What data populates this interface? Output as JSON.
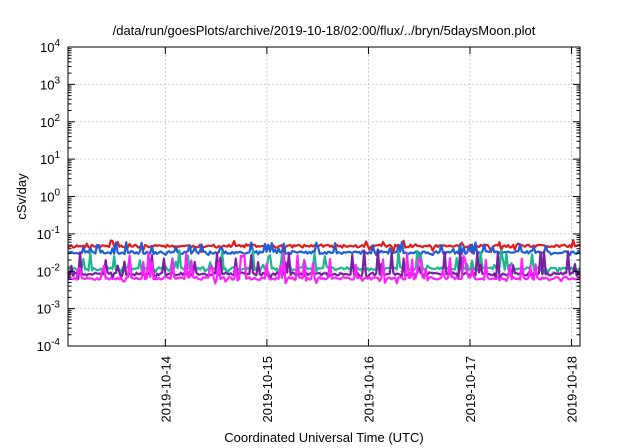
{
  "chart_data": {
    "type": "line",
    "title": "/data/run/goesPlots/archive/2019-10-18/02:00/flux/../bryn/5daysMoon.plot",
    "xlabel": "Coordinated Universal Time (UTC)",
    "ylabel": "cSv/day",
    "y_scale": "log",
    "ylim": [
      0.0001,
      10000
    ],
    "y_ticks": [
      {
        "value": 0.0001,
        "base": "10",
        "exp": "-4"
      },
      {
        "value": 0.001,
        "base": "10",
        "exp": "-3"
      },
      {
        "value": 0.01,
        "base": "10",
        "exp": "-2"
      },
      {
        "value": 0.1,
        "base": "10",
        "exp": "-1"
      },
      {
        "value": 1,
        "base": "10",
        "exp": "0"
      },
      {
        "value": 10,
        "base": "10",
        "exp": "1"
      },
      {
        "value": 100,
        "base": "10",
        "exp": "2"
      },
      {
        "value": 1000,
        "base": "10",
        "exp": "3"
      },
      {
        "value": 10000,
        "base": "10",
        "exp": "4"
      }
    ],
    "x_range_days": [
      "2019-10-13 01:00",
      "2019-10-18 02:00"
    ],
    "x_ticks": [
      "2019-10-14",
      "2019-10-15",
      "2019-10-16",
      "2019-10-17",
      "2019-10-18"
    ],
    "grid": true,
    "legend": "none",
    "series": [
      {
        "color": "#e41a1c",
        "base": 0.047,
        "spike_freq": 0.07,
        "spike_height": 1.55,
        "drop_depth": 1.0,
        "seed": 11
      },
      {
        "color": "#1f5fd6",
        "base": 0.032,
        "spike_freq": 0.14,
        "spike_height": 1.9,
        "drop_depth": 0.45,
        "seed": 23
      },
      {
        "color": "#1fb58f",
        "base": 0.0118,
        "spike_freq": 0.12,
        "spike_height": 3.2,
        "drop_depth": 0.8,
        "seed": 37
      },
      {
        "color": "#7a1fa2",
        "base": 0.0085,
        "spike_freq": 0.12,
        "spike_height": 4.2,
        "drop_depth": 0.8,
        "seed": 41
      },
      {
        "color": "#ff22ff",
        "base": 0.0065,
        "spike_freq": 0.13,
        "spike_height": 5.0,
        "drop_depth": 0.85,
        "seed": 53
      }
    ]
  }
}
